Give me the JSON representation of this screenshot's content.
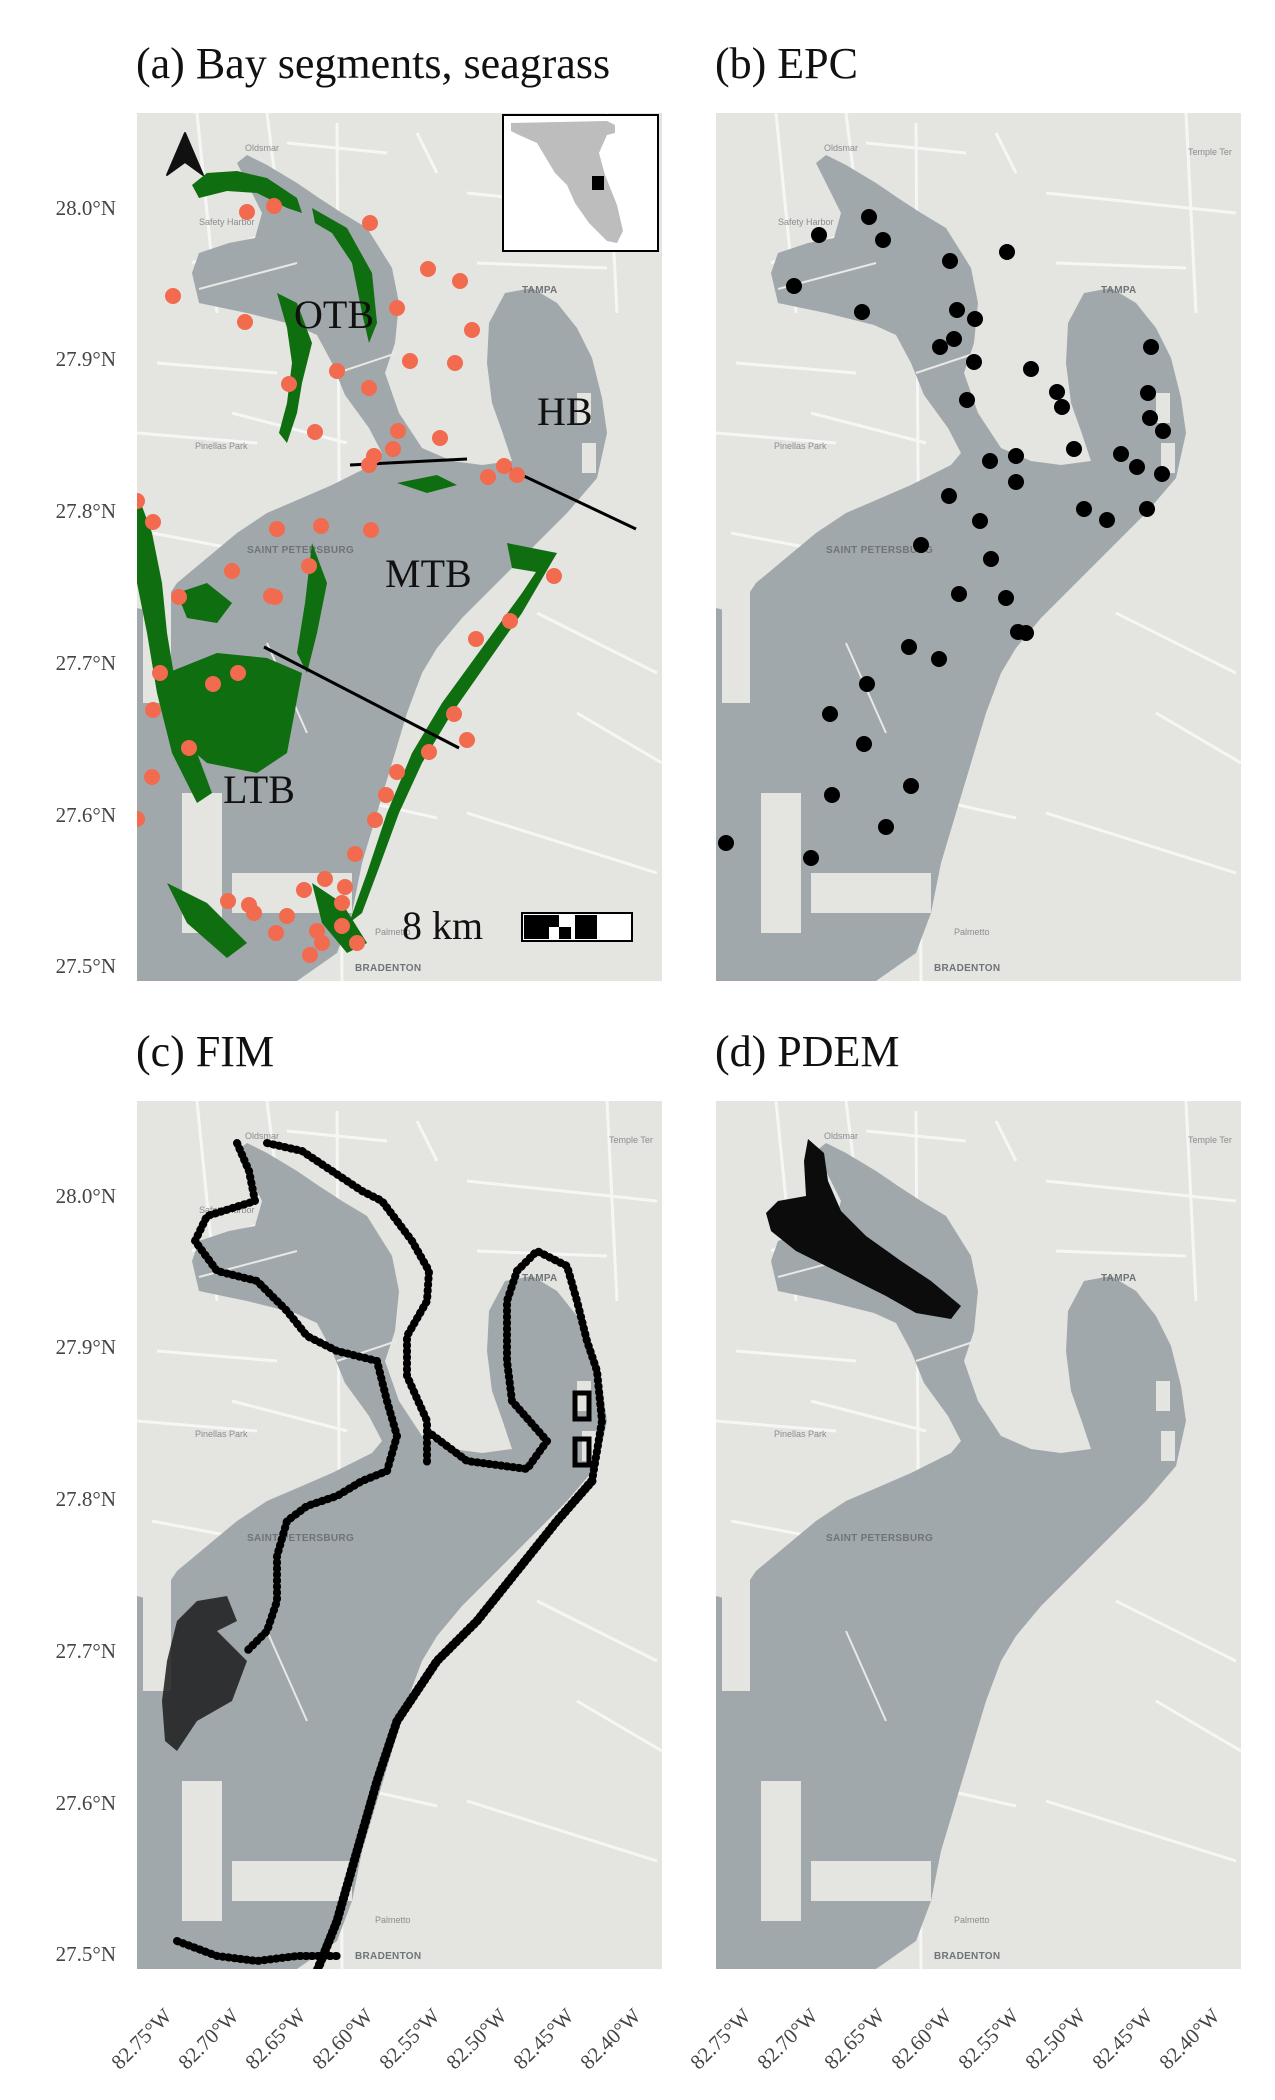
{
  "panels": {
    "a": {
      "title": "(a) Bay segments, seagrass",
      "segments": [
        "OTB",
        "HB",
        "MTB",
        "LTB"
      ],
      "scale_label": "8 km"
    },
    "b": {
      "title": "(b) EPC"
    },
    "c": {
      "title": "(c) FIM"
    },
    "d": {
      "title": "(d) PDEM"
    }
  },
  "places": {
    "oldsmar": "Oldsmar",
    "safety_harbor": "Safety Harbor",
    "tampa": "TAMPA",
    "temple_terrace": "Temple Ter",
    "pinellas_park": "Pinellas Park",
    "saint_petersburg": "SAINT PETERSBURG",
    "palmetto": "Palmetto",
    "bradenton": "BRADENTON"
  },
  "axes": {
    "y_ticks": [
      "28.0°N",
      "27.9°N",
      "27.8°N",
      "27.7°N",
      "27.6°N",
      "27.5°N"
    ],
    "x_ticks": [
      "82.75°W",
      "82.70°W",
      "82.65°W",
      "82.60°W",
      "82.55°W",
      "82.50°W",
      "82.45°W",
      "82.40°W"
    ]
  },
  "colors": {
    "water": "#a0a8ab",
    "land": "#e4e4e0",
    "road": "#f6f6f4",
    "seagrass": "#0f6e0f",
    "seagrass_points": "#f26b4f",
    "epc_points": "#000000",
    "boundary": "#000000"
  }
}
